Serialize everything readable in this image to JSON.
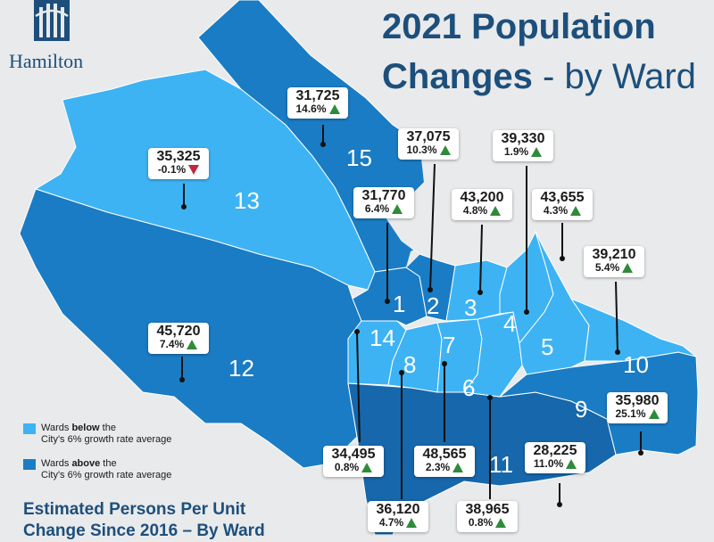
{
  "header": {
    "logo_text": "Hamilton",
    "title_line1": "2021 Population",
    "title_line2_bold": "Changes",
    "title_line2_rest": " - by Ward"
  },
  "colors": {
    "ward_below": "#3db3f4",
    "ward_above": "#1a7cc4",
    "ward_above_dark": "#1667ab",
    "brand": "#1d4f7c",
    "increase": "#2e8b3a",
    "decrease": "#c0283f"
  },
  "wards": [
    {
      "id": "1",
      "label": "1",
      "population": "31,770",
      "change": "6.4%",
      "direction": "up",
      "category": "above"
    },
    {
      "id": "2",
      "label": "2",
      "population": "37,075",
      "change": "10.3%",
      "direction": "up",
      "category": "above"
    },
    {
      "id": "3",
      "label": "3",
      "population": "43,200",
      "change": "4.8%",
      "direction": "up",
      "category": "below"
    },
    {
      "id": "4",
      "label": "4",
      "population": "39,330",
      "change": "1.9%",
      "direction": "up",
      "category": "below"
    },
    {
      "id": "5",
      "label": "5",
      "population": "43,655",
      "change": "4.3%",
      "direction": "up",
      "category": "below"
    },
    {
      "id": "6",
      "label": "6",
      "population": "38,965",
      "change": "0.8%",
      "direction": "up",
      "category": "below"
    },
    {
      "id": "7",
      "label": "7",
      "population": "48,565",
      "change": "2.3%",
      "direction": "up",
      "category": "below"
    },
    {
      "id": "8",
      "label": "8",
      "population": "36,120",
      "change": "4.7%",
      "direction": "up",
      "category": "below"
    },
    {
      "id": "9",
      "label": "9",
      "population": "35,980",
      "change": "25.1%",
      "direction": "up",
      "category": "above"
    },
    {
      "id": "10",
      "label": "10",
      "population": "39,210",
      "change": "5.4%",
      "direction": "up",
      "category": "below"
    },
    {
      "id": "11",
      "label": "11",
      "population": "28,225",
      "change": "11.0%",
      "direction": "up",
      "category": "above"
    },
    {
      "id": "12",
      "label": "12",
      "population": "45,720",
      "change": "7.4%",
      "direction": "up",
      "category": "above"
    },
    {
      "id": "13",
      "label": "13",
      "population": "35,325",
      "change": "-0.1%",
      "direction": "down",
      "category": "below"
    },
    {
      "id": "14",
      "label": "14",
      "population": "34,495",
      "change": "0.8%",
      "direction": "up",
      "category": "below"
    },
    {
      "id": "15",
      "label": "15",
      "population": "31,725",
      "change": "14.6%",
      "direction": "up",
      "category": "above"
    }
  ],
  "legend": {
    "below_text": "Wards below the City's 6% growth rate average",
    "below_pre": "Wards ",
    "below_bold": "below",
    "below_post": " the",
    "below_line2": "City's 6% growth rate average",
    "above_pre": "Wards ",
    "above_bold": "above",
    "above_post": " the",
    "above_line2": "City's 6% growth rate average"
  },
  "footer": {
    "line1": "Estimated Persons Per Unit",
    "line2": "Change Since 2016 – By Ward"
  }
}
